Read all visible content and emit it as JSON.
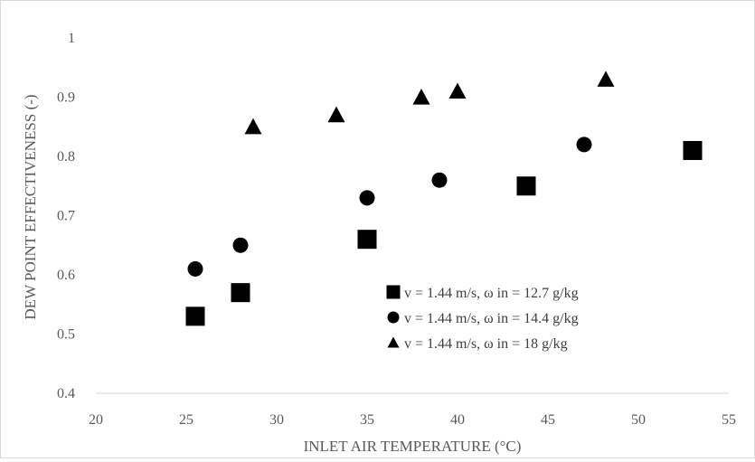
{
  "chart_data": {
    "type": "scatter",
    "title": "",
    "xlabel": "INLET  AIR TEMPERATURE  (°C)",
    "ylabel": "DEW POINT EFFECTIVENESS  (-)",
    "xlim": [
      20,
      55
    ],
    "ylim": [
      0.4,
      1
    ],
    "x_ticks": [
      20,
      25,
      30,
      35,
      40,
      45,
      50,
      55
    ],
    "x_tick_labels": [
      "20",
      "25",
      "30",
      "35",
      "40",
      "45",
      "50",
      "55"
    ],
    "y_ticks": [
      0.4,
      0.5,
      0.6,
      0.7,
      0.8,
      0.9,
      1
    ],
    "y_tick_labels": [
      "0.4",
      "0.5",
      "0.6",
      "0.7",
      "0.8",
      "0.9",
      "1"
    ],
    "grid": false,
    "legend_position": "inside-lower-right",
    "series": [
      {
        "name": "v = 1.44  m/s, ω  in = 12.7  g/kg",
        "marker": "square",
        "color": "#000000",
        "x": [
          25.5,
          28,
          35,
          43.8,
          53
        ],
        "y": [
          0.53,
          0.57,
          0.66,
          0.75,
          0.81
        ]
      },
      {
        "name": "v = 1.44  m/s, ω in = 14.4  g/kg",
        "marker": "circle",
        "color": "#000000",
        "x": [
          25.5,
          28,
          35,
          39,
          47
        ],
        "y": [
          0.61,
          0.65,
          0.73,
          0.76,
          0.82
        ]
      },
      {
        "name": "v = 1.44  m/s, ω in = 18  g/kg",
        "marker": "triangle",
        "color": "#000000",
        "x": [
          28.7,
          33.3,
          38,
          40,
          48.2
        ],
        "y": [
          0.85,
          0.87,
          0.9,
          0.91,
          0.93
        ]
      }
    ]
  }
}
